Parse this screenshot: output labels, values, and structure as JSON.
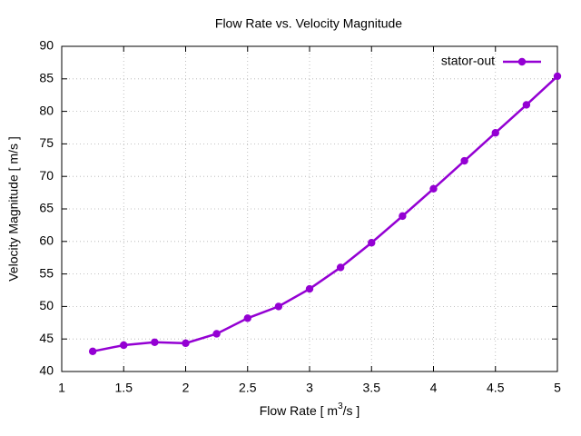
{
  "chart_data": {
    "type": "line",
    "title": "Flow Rate vs. Velocity Magnitude",
    "xlabel_parts": [
      "Flow Rate [ m",
      "3",
      "/s ]"
    ],
    "ylabel": "Velocity Magnitude [ m/s ]",
    "x": [
      1.25,
      1.5,
      1.75,
      2,
      2.25,
      2.5,
      2.75,
      3,
      3.25,
      3.5,
      3.75,
      4,
      4.25,
      4.5,
      4.75,
      5
    ],
    "series": [
      {
        "name": "stator-out",
        "color": "#9400d3",
        "values": [
          43.1,
          44.05,
          44.5,
          44.35,
          45.8,
          48.2,
          50.0,
          52.7,
          56.0,
          59.8,
          63.9,
          68.1,
          72.4,
          76.7,
          81.0,
          85.4
        ]
      }
    ],
    "xlim": [
      1,
      5
    ],
    "xticks": [
      1,
      1.5,
      2,
      2.5,
      3,
      3.5,
      4,
      4.5,
      5
    ],
    "ylim": [
      40,
      90
    ],
    "yticks": [
      40,
      45,
      50,
      55,
      60,
      65,
      70,
      75,
      80,
      85,
      90
    ],
    "grid": true,
    "legend": "top-right"
  }
}
